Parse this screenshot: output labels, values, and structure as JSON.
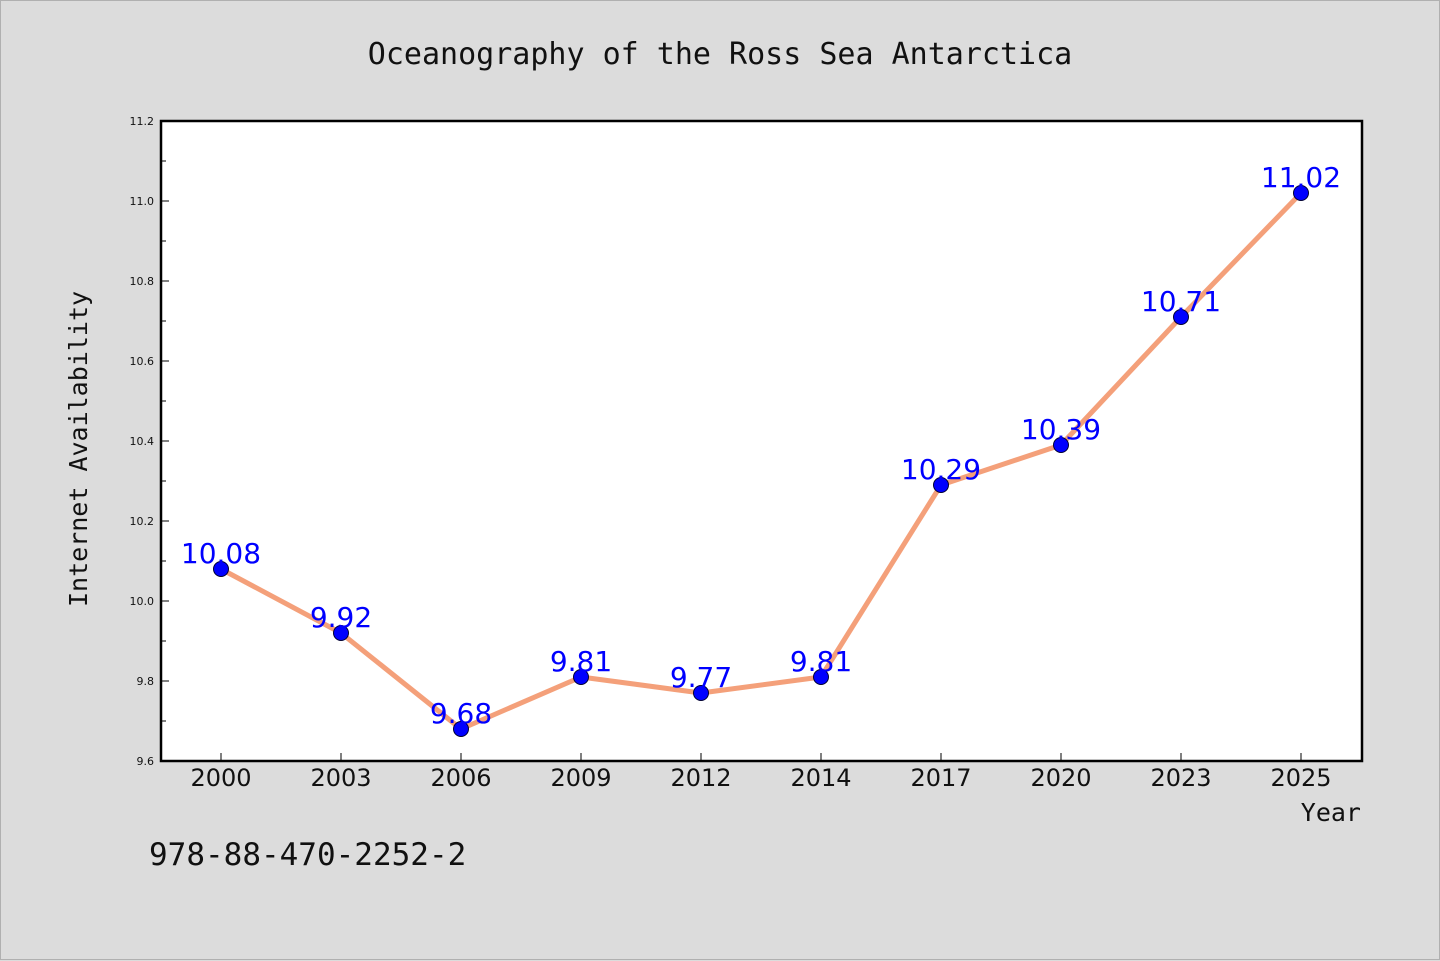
{
  "chart_data": {
    "type": "line",
    "title": "Oceanography of the Ross Sea Antarctica",
    "xlabel": "Year",
    "ylabel": "Internet Availability",
    "categories": [
      "2000",
      "2003",
      "2006",
      "2009",
      "2012",
      "2014",
      "2017",
      "2020",
      "2023",
      "2025"
    ],
    "series": [
      {
        "values": [
          10.08,
          9.92,
          9.68,
          9.81,
          9.77,
          9.81,
          10.29,
          10.39,
          10.71,
          11.02
        ],
        "data_labels": [
          "10.08",
          "9.92",
          "9.68",
          "9.81",
          "9.77",
          "9.81",
          "10.29",
          "10.39",
          "10.71",
          "11.02"
        ],
        "line_color": "#f4a07a",
        "marker_color": "#0000ff"
      }
    ],
    "ylim": [
      9.6,
      11.2
    ],
    "yticks": [
      "9.6",
      "9.8",
      "10.0",
      "10.2",
      "10.4",
      "10.6",
      "10.8",
      "11.0",
      "11.2"
    ],
    "grid": false,
    "background": "#ffffff",
    "page_background": "#dcdcdc"
  },
  "footnote": "978-88-470-2252-2"
}
